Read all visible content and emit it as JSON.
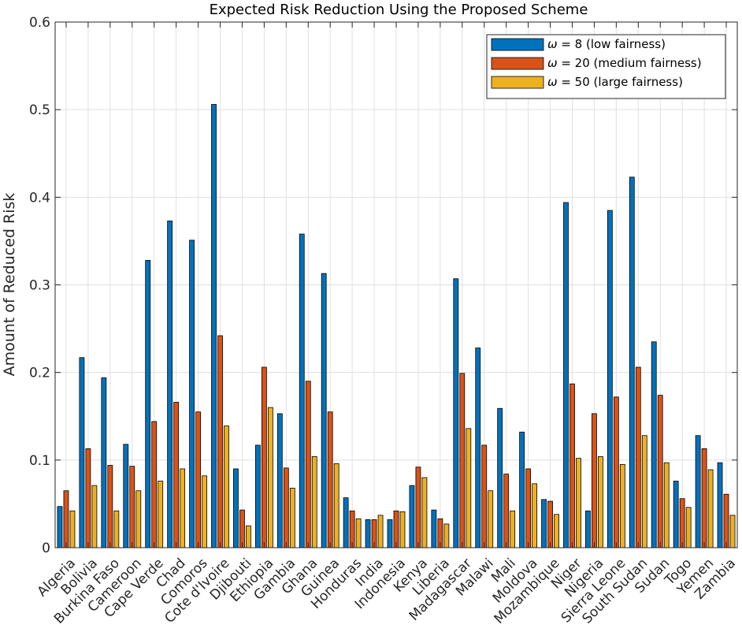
{
  "chart_data": {
    "type": "bar",
    "title": "Expected Risk Reduction Using the Proposed Scheme",
    "xlabel": "",
    "ylabel": "Amount of Reduced Risk",
    "ylim": [
      0,
      0.6
    ],
    "yticks": [
      0,
      0.1,
      0.2,
      0.3,
      0.4,
      0.5,
      0.6
    ],
    "ytick_labels": [
      "0",
      "0.1",
      "0.2",
      "0.3",
      "0.4",
      "0.5",
      "0.6"
    ],
    "grid": true,
    "legend_position": "top-right",
    "categories": [
      "Algeria",
      "Bolivia",
      "Burkina Faso",
      "Cameroon",
      "Cape Verde",
      "Chad",
      "Comoros",
      "Cote d'Ivoire",
      "Djibouti",
      "Ethiopia",
      "Gambia",
      "Ghana",
      "Guinea",
      "Honduras",
      "India",
      "Indonesia",
      "Kenya",
      "Liberia",
      "Madagascar",
      "Malawi",
      "Mali",
      "Moldova",
      "Mozambique",
      "Niger",
      "Nigeria",
      "Sierra Leone",
      "South Sudan",
      "Sudan",
      "Togo",
      "Yemen",
      "Zambia"
    ],
    "series": [
      {
        "name": "ω = 8 (low fairness)",
        "symbol": "ω",
        "label_rest": " = 8 (low fairness)",
        "color": "#0072BD",
        "values": [
          0.047,
          0.217,
          0.194,
          0.118,
          0.328,
          0.373,
          0.351,
          0.506,
          0.09,
          0.117,
          0.153,
          0.358,
          0.313,
          0.057,
          0.032,
          0.032,
          0.071,
          0.043,
          0.307,
          0.228,
          0.159,
          0.132,
          0.055,
          0.394,
          0.042,
          0.385,
          0.423,
          0.235,
          0.076,
          0.128,
          0.097
        ]
      },
      {
        "name": "ω = 20 (medium fairness)",
        "symbol": "ω",
        "label_rest": " = 20 (medium fairness)",
        "color": "#D95319",
        "values": [
          0.065,
          0.113,
          0.094,
          0.093,
          0.144,
          0.166,
          0.155,
          0.242,
          0.043,
          0.206,
          0.091,
          0.19,
          0.155,
          0.042,
          0.032,
          0.042,
          0.092,
          0.033,
          0.199,
          0.117,
          0.084,
          0.09,
          0.053,
          0.187,
          0.153,
          0.172,
          0.206,
          0.174,
          0.056,
          0.113,
          0.061
        ]
      },
      {
        "name": "ω = 50 (large fairness)",
        "symbol": "ω",
        "label_rest": " = 50 (large fairness)",
        "color": "#EDB120",
        "values": [
          0.042,
          0.071,
          0.042,
          0.065,
          0.076,
          0.09,
          0.082,
          0.139,
          0.025,
          0.16,
          0.068,
          0.104,
          0.096,
          0.033,
          0.037,
          0.041,
          0.08,
          0.027,
          0.136,
          0.065,
          0.042,
          0.073,
          0.038,
          0.102,
          0.104,
          0.095,
          0.128,
          0.097,
          0.046,
          0.089,
          0.037
        ]
      }
    ]
  }
}
